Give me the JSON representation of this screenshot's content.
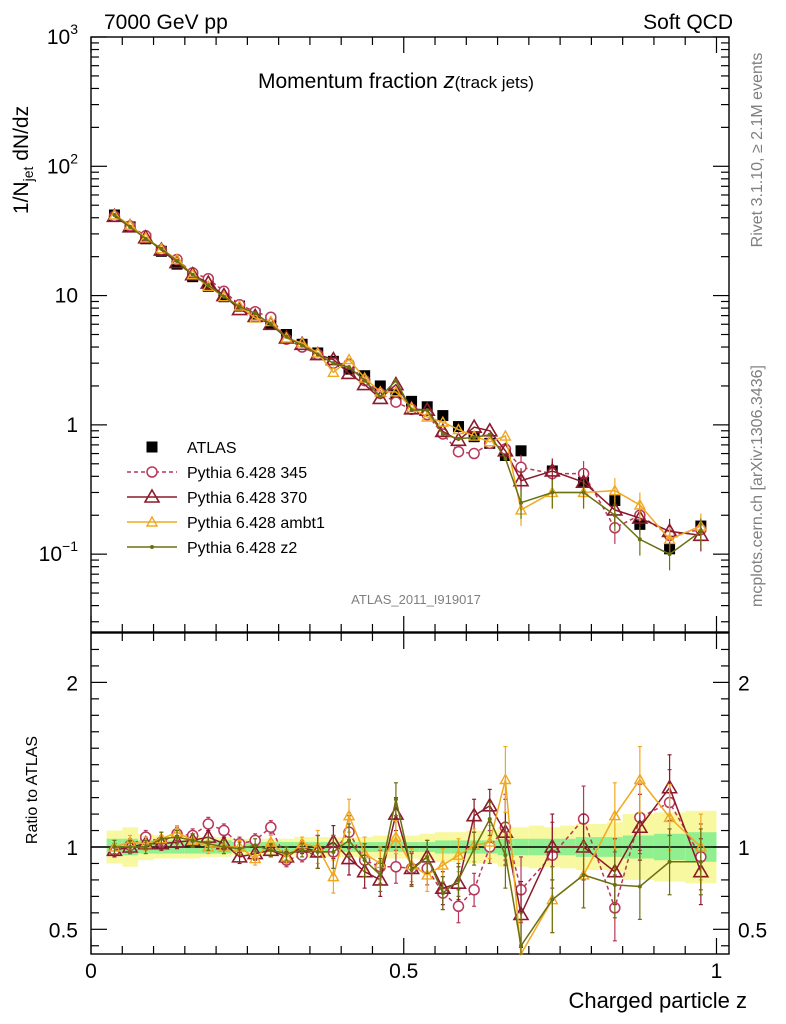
{
  "header": {
    "left": "7000 GeV pp",
    "right": "Soft QCD"
  },
  "title_main": "Momentum fraction ",
  "title_var": "z",
  "title_sub": "(track jets)",
  "watermark": "ATLAS_2011_I919017",
  "side_rivet": "Rivet 3.1.10, ≥ 2.1M events",
  "side_mcplots": "mcplots.cern.ch [arXiv:1306.3436]",
  "ylabel_top": "1/N",
  "ylabel_top_sub": "jet",
  "ylabel_top_rest": " dN/dz",
  "ylabel_ratio": "Ratio to ATLAS",
  "xlabel": "Charged particle z",
  "ticks": {
    "top_y": [
      {
        "v": 0.1,
        "base": "10",
        "exp": "−1"
      },
      {
        "v": 1,
        "base": "1",
        "exp": ""
      },
      {
        "v": 10,
        "base": "10",
        "exp": ""
      },
      {
        "v": 100,
        "base": "10",
        "exp": "2"
      },
      {
        "v": 1000,
        "base": "10",
        "exp": "3"
      }
    ],
    "ratio_y": [
      {
        "v": 0.5,
        "label": "0.5"
      },
      {
        "v": 1,
        "label": "1"
      },
      {
        "v": 2,
        "label": "2"
      }
    ],
    "x": [
      {
        "v": 0,
        "label": "0"
      },
      {
        "v": 0.5,
        "label": "0.5"
      },
      {
        "v": 1,
        "label": "1"
      }
    ]
  },
  "colors": {
    "atlas": "#000000",
    "p345": "#b8375a",
    "p370": "#8b1a2b",
    "ambt1": "#f0a820",
    "z2": "#6b7010",
    "band_inner": "#90f090",
    "band_outer": "#f8f8a0"
  },
  "chart_data": {
    "type": "scatter",
    "x_range": [
      0,
      1.02
    ],
    "y_range_top": [
      0.025,
      1000
    ],
    "y_scale_top": "log",
    "y_range_ratio": [
      0.35,
      2.3
    ],
    "legend_position": "middle-left",
    "x": [
      0.0375,
      0.0625,
      0.0875,
      0.1125,
      0.1375,
      0.1625,
      0.1875,
      0.2125,
      0.2375,
      0.2625,
      0.2875,
      0.3125,
      0.3375,
      0.3625,
      0.3875,
      0.4125,
      0.4375,
      0.4625,
      0.4875,
      0.5125,
      0.5375,
      0.5625,
      0.5875,
      0.6125,
      0.6375,
      0.6625,
      0.6875,
      0.7125,
      0.7375,
      0.7625,
      0.7875,
      0.8125,
      0.8375,
      0.8625,
      0.8875,
      0.9125,
      0.9375,
      0.9625,
      0.9875
    ],
    "series": [
      {
        "name": "ATLAS",
        "x": [
          0.0375,
          0.0625,
          0.0875,
          0.1125,
          0.1375,
          0.1625,
          0.1875,
          0.2125,
          0.2375,
          0.2625,
          0.2875,
          0.3125,
          0.3375,
          0.3625,
          0.3875,
          0.4125,
          0.4375,
          0.4625,
          0.4875,
          0.5125,
          0.5375,
          0.5625,
          0.5875,
          0.6125,
          0.6375,
          0.6625,
          0.6875,
          0.7375,
          0.7875,
          0.8375,
          0.8775,
          0.925,
          0.975
        ],
        "values": [
          42,
          34,
          27.5,
          22,
          17.5,
          14,
          11.8,
          9.8,
          8.3,
          7.2,
          6.1,
          5.0,
          4.2,
          3.6,
          3.1,
          2.7,
          2.4,
          2.0,
          1.7,
          1.52,
          1.38,
          1.18,
          0.97,
          0.81,
          0.72,
          0.58,
          0.63,
          0.44,
          0.36,
          0.26,
          0.17,
          0.11,
          0.165
        ]
      },
      {
        "name": "Pythia 6.428 345",
        "x": [
          0.0375,
          0.0625,
          0.0875,
          0.1125,
          0.1375,
          0.1625,
          0.1875,
          0.2125,
          0.2375,
          0.2625,
          0.2875,
          0.3125,
          0.3375,
          0.3625,
          0.3875,
          0.4125,
          0.4375,
          0.4625,
          0.4875,
          0.5125,
          0.5375,
          0.5625,
          0.5875,
          0.6125,
          0.6375,
          0.6625,
          0.6875,
          0.7375,
          0.7875,
          0.8375,
          0.8775,
          0.925,
          0.975
        ],
        "values": [
          41,
          34.5,
          29,
          22.5,
          19,
          15,
          13.5,
          10.8,
          8.5,
          7.5,
          6.8,
          4.6,
          4.0,
          3.5,
          3.0,
          2.95,
          2.2,
          1.75,
          1.5,
          1.32,
          1.2,
          0.85,
          0.62,
          0.6,
          0.72,
          0.65,
          0.47,
          0.42,
          0.42,
          0.16,
          0.2,
          0.14,
          0.155
        ]
      },
      {
        "name": "Pythia 6.428 370",
        "x": [
          0.0375,
          0.0625,
          0.0875,
          0.1125,
          0.1375,
          0.1625,
          0.1875,
          0.2125,
          0.2375,
          0.2625,
          0.2875,
          0.3125,
          0.3375,
          0.3625,
          0.3875,
          0.4125,
          0.4375,
          0.4625,
          0.4875,
          0.5125,
          0.5375,
          0.5625,
          0.5875,
          0.6125,
          0.6375,
          0.6625,
          0.6875,
          0.7375,
          0.7875,
          0.8375,
          0.8775,
          0.925,
          0.975
        ],
        "values": [
          41,
          34,
          28,
          22.5,
          18,
          14.5,
          12.5,
          10,
          7.8,
          6.9,
          6.0,
          4.7,
          4.2,
          3.5,
          3.2,
          2.5,
          2.05,
          1.6,
          2.05,
          1.33,
          1.3,
          0.89,
          0.76,
          0.96,
          0.9,
          0.63,
          0.37,
          0.44,
          0.36,
          0.22,
          0.19,
          0.15,
          0.14
        ]
      },
      {
        "name": "Pythia 6.428 ambt1",
        "x": [
          0.0375,
          0.0625,
          0.0875,
          0.1125,
          0.1375,
          0.1625,
          0.1875,
          0.2125,
          0.2375,
          0.2625,
          0.2875,
          0.3125,
          0.3375,
          0.3625,
          0.3875,
          0.4125,
          0.4375,
          0.4625,
          0.4875,
          0.5125,
          0.5375,
          0.5625,
          0.5875,
          0.6125,
          0.6375,
          0.6625,
          0.6875,
          0.7375,
          0.7875,
          0.8375,
          0.8775,
          0.925,
          0.975
        ],
        "values": [
          42,
          35,
          28,
          23,
          19,
          14.5,
          11.8,
          9.8,
          8.3,
          6.7,
          6.3,
          4.7,
          4.3,
          3.6,
          2.55,
          3.2,
          2.3,
          1.8,
          1.8,
          1.36,
          1.15,
          1.05,
          0.92,
          0.82,
          0.74,
          0.82,
          0.22,
          0.3,
          0.3,
          0.31,
          0.24,
          0.13,
          0.165
        ]
      },
      {
        "name": "Pythia 6.428 z2",
        "x": [
          0.0375,
          0.0625,
          0.0875,
          0.1125,
          0.1375,
          0.1625,
          0.1875,
          0.2125,
          0.2375,
          0.2625,
          0.2875,
          0.3125,
          0.3375,
          0.3625,
          0.3875,
          0.4125,
          0.4375,
          0.4625,
          0.4875,
          0.5125,
          0.5375,
          0.5625,
          0.5875,
          0.6125,
          0.6375,
          0.6625,
          0.6875,
          0.7375,
          0.7875,
          0.8375,
          0.8775,
          0.925,
          0.975
        ],
        "values": [
          42,
          34,
          27.5,
          23,
          18.5,
          14.5,
          12,
          9.8,
          8.2,
          7.3,
          6.0,
          4.8,
          4.1,
          3.5,
          3.0,
          2.8,
          2.2,
          1.65,
          2.2,
          1.3,
          1.3,
          0.85,
          0.78,
          0.8,
          0.84,
          0.55,
          0.25,
          0.3,
          0.3,
          0.2,
          0.13,
          0.1,
          0.15
        ]
      }
    ],
    "ratio_series": [
      {
        "name": "Pythia 6.428 345",
        "values": [
          0.98,
          1.01,
          1.06,
          1.03,
          1.08,
          1.07,
          1.14,
          1.1,
          1.02,
          1.04,
          1.12,
          0.92,
          0.95,
          0.97,
          0.97,
          1.09,
          0.92,
          0.88,
          0.88,
          0.87,
          0.87,
          0.72,
          0.64,
          0.74,
          1.0,
          1.12,
          0.74,
          0.95,
          1.17,
          0.63,
          1.18,
          1.27,
          0.94
        ]
      },
      {
        "name": "Pythia 6.428 370",
        "values": [
          0.98,
          1.0,
          1.02,
          1.02,
          1.03,
          1.04,
          1.06,
          1.02,
          0.94,
          0.96,
          0.98,
          0.94,
          1.0,
          0.97,
          1.03,
          0.93,
          0.85,
          0.8,
          1.2,
          0.87,
          0.94,
          0.75,
          0.78,
          1.19,
          1.25,
          1.09,
          0.59,
          1.0,
          1.0,
          0.85,
          1.12,
          1.36,
          0.85
        ]
      },
      {
        "name": "Pythia 6.428 ambt1",
        "values": [
          1.0,
          1.03,
          1.02,
          1.05,
          1.09,
          1.04,
          1.0,
          1.0,
          1.0,
          0.93,
          1.03,
          0.94,
          1.02,
          1.0,
          0.82,
          1.19,
          0.96,
          0.9,
          1.06,
          0.89,
          0.83,
          0.89,
          0.95,
          1.01,
          1.03,
          1.41,
          0.35,
          0.68,
          0.83,
          1.19,
          1.41,
          1.18,
          1.0
        ]
      },
      {
        "name": "Pythia 6.428 z2",
        "values": [
          1.0,
          1.0,
          1.0,
          1.05,
          1.06,
          1.04,
          1.02,
          1.0,
          0.99,
          1.01,
          0.98,
          0.96,
          0.98,
          0.97,
          0.97,
          1.04,
          0.92,
          0.83,
          1.29,
          0.86,
          0.94,
          0.72,
          0.8,
          0.99,
          1.17,
          0.95,
          0.4,
          0.68,
          0.83,
          0.77,
          0.76,
          0.91,
          0.91
        ]
      }
    ],
    "band_edges": [
      0.025,
      0.05,
      0.075,
      0.1,
      0.125,
      0.15,
      0.175,
      0.2,
      0.225,
      0.25,
      0.275,
      0.3,
      0.325,
      0.35,
      0.375,
      0.4,
      0.425,
      0.45,
      0.475,
      0.5,
      0.525,
      0.55,
      0.575,
      0.6,
      0.625,
      0.65,
      0.675,
      0.7,
      0.725,
      0.75,
      0.775,
      0.8,
      0.825,
      0.85,
      0.875,
      0.9,
      0.925,
      0.95,
      0.975,
      1.0
    ],
    "band_inner": [
      0.05,
      0.05,
      0.04,
      0.04,
      0.04,
      0.04,
      0.04,
      0.04,
      0.03,
      0.03,
      0.03,
      0.03,
      0.03,
      0.03,
      0.03,
      0.03,
      0.03,
      0.03,
      0.03,
      0.03,
      0.03,
      0.04,
      0.04,
      0.04,
      0.04,
      0.05,
      0.05,
      0.05,
      0.05,
      0.05,
      0.06,
      0.06,
      0.06,
      0.07,
      0.07,
      0.08,
      0.08,
      0.09,
      0.09
    ],
    "band_outer": [
      0.1,
      0.12,
      0.08,
      0.07,
      0.07,
      0.07,
      0.06,
      0.06,
      0.05,
      0.05,
      0.05,
      0.05,
      0.06,
      0.06,
      0.06,
      0.06,
      0.06,
      0.07,
      0.07,
      0.07,
      0.08,
      0.09,
      0.09,
      0.1,
      0.1,
      0.12,
      0.12,
      0.13,
      0.12,
      0.13,
      0.14,
      0.14,
      0.15,
      0.2,
      0.2,
      0.21,
      0.21,
      0.22,
      0.22
    ]
  }
}
